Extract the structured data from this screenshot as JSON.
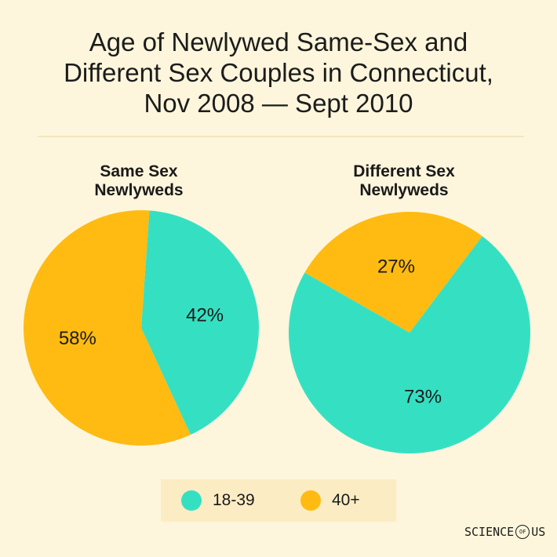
{
  "title_lines": [
    "Age of Newlywed Same-Sex and",
    "Different Sex Couples in Connecticut,",
    "Nov 2008 — Sept 2010"
  ],
  "chart_data": [
    {
      "type": "pie",
      "title_lines": [
        "Same Sex",
        "Newlyweds"
      ],
      "slices": [
        {
          "name": "18-39",
          "value": 42,
          "label": "42%",
          "color": "#35e0c2"
        },
        {
          "name": "40+",
          "value": 58,
          "label": "58%",
          "color": "#ffbb12"
        }
      ]
    },
    {
      "type": "pie",
      "title_lines": [
        "Different Sex",
        "Newlyweds"
      ],
      "slices": [
        {
          "name": "18-39",
          "value": 73,
          "label": "73%",
          "color": "#35e0c2"
        },
        {
          "name": "40+",
          "value": 27,
          "label": "27%",
          "color": "#ffbb12"
        }
      ]
    }
  ],
  "legend": [
    {
      "label": "18-39",
      "color": "#35e0c2"
    },
    {
      "label": "40+",
      "color": "#ffbb12"
    }
  ],
  "brand": {
    "left": "SCIENCE",
    "middle": "OF",
    "right": "US"
  }
}
